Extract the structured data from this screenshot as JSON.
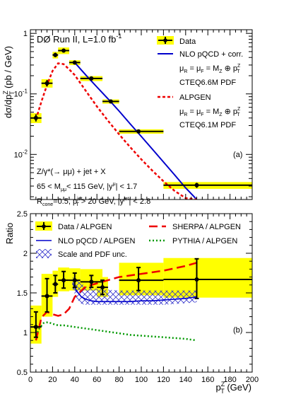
{
  "chart_data": [
    {
      "type": "line",
      "panel_label": "(a)",
      "ylabel": "dσ/dp",
      "ylabel_sup": "Z",
      "ylabel_sub": "T",
      "ylabel_unit": " (pb / GeV)",
      "title": "DØ Run II, L=1.0 fb",
      "title_sup": "-1",
      "yscale": "log",
      "ylim": [
        0.0018,
        1.15
      ],
      "xlim": [
        0,
        200
      ],
      "yticks": [
        {
          "value": 1,
          "base": "1",
          "exp": ""
        },
        {
          "value": 0.1,
          "base": "10",
          "exp": "-1"
        },
        {
          "value": 0.01,
          "base": "10",
          "exp": "-2"
        }
      ],
      "annotations": [
        "Z/γ*(→ μμ) + jet + X",
        "65 < M",
        "μμ",
        "< 115 GeV,  |y",
        "μ",
        "| < 1.7",
        "R",
        "cone",
        "=0.5,  p",
        "jet",
        "T",
        " > 20 GeV,  |y",
        "jet",
        "| < 2.8"
      ],
      "legend": [
        {
          "label": "Data",
          "style": "data"
        },
        {
          "label": "NLO pQCD + corr.",
          "style": "nlo"
        },
        {
          "label": "μ",
          "sub": "R",
          "rest": " = μ",
          "sub2": "F",
          "rest2": " = M",
          "sub3": "Z",
          "rest3": " ⊕ p",
          "sup4": "Z",
          "sub4": "T",
          "style": "text"
        },
        {
          "label": "CTEQ6.6M PDF",
          "style": "text"
        },
        {
          "label": "ALPGEN",
          "style": "alpgen"
        },
        {
          "label": "μ",
          "sub": "R",
          "rest": " = μ",
          "sub2": "F",
          "rest2": " = M",
          "sub3": "Z",
          "rest3": " ⊕ p",
          "sup4": "Z",
          "sub4": "T",
          "style": "text"
        },
        {
          "label": "CTEQ6.1M PDF",
          "style": "text"
        }
      ],
      "series": [
        {
          "name": "Data",
          "color": "#000000",
          "band_color": "#ffff00",
          "points": [
            {
              "x": 5,
              "xlo": 0,
              "xhi": 10,
              "y": 0.04,
              "ylo": 0.035,
              "yhi": 0.046,
              "blo": 0.033,
              "bhi": 0.048
            },
            {
              "x": 15,
              "xlo": 10,
              "xhi": 20,
              "y": 0.15,
              "ylo": 0.133,
              "yhi": 0.17,
              "blo": 0.127,
              "bhi": 0.175
            },
            {
              "x": 22.5,
              "xlo": 20,
              "xhi": 25,
              "y": 0.44,
              "ylo": 0.405,
              "yhi": 0.48,
              "blo": 0.385,
              "bhi": 0.495
            },
            {
              "x": 30,
              "xlo": 25,
              "xhi": 35,
              "y": 0.52,
              "ylo": 0.485,
              "yhi": 0.56,
              "blo": 0.455,
              "bhi": 0.585
            },
            {
              "x": 40,
              "xlo": 35,
              "xhi": 45,
              "y": 0.33,
              "ylo": 0.31,
              "yhi": 0.35,
              "blo": 0.3,
              "bhi": 0.36
            },
            {
              "x": 55,
              "xlo": 45,
              "xhi": 65,
              "y": 0.18,
              "ylo": 0.171,
              "yhi": 0.189,
              "blo": 0.163,
              "bhi": 0.197
            },
            {
              "x": 72.5,
              "xlo": 65,
              "xhi": 80,
              "y": 0.075,
              "ylo": 0.071,
              "yhi": 0.079,
              "blo": 0.069,
              "bhi": 0.081
            },
            {
              "x": 97.5,
              "xlo": 80,
              "xhi": 120,
              "y": 0.024,
              "ylo": 0.0226,
              "yhi": 0.0254,
              "blo": 0.022,
              "bhi": 0.026
            },
            {
              "x": 150,
              "xlo": 120,
              "xhi": 200,
              "y": 0.0031,
              "ylo": 0.0028,
              "yhi": 0.0034,
              "blo": 0.0027,
              "bhi": 0.0035
            }
          ]
        },
        {
          "name": "NLO pQCD + corr.",
          "color": "#0000cc",
          "dash": "none",
          "x": [
            40,
            50,
            60,
            70,
            80,
            90,
            100,
            110,
            120,
            130,
            140,
            150
          ],
          "y": [
            0.33,
            0.205,
            0.13,
            0.083,
            0.052,
            0.032,
            0.0198,
            0.0122,
            0.0075,
            0.0046,
            0.0028,
            0.0018
          ]
        },
        {
          "name": "ALPGEN",
          "color": "#ee0000",
          "dash": "4,3",
          "x": [
            5,
            10,
            15,
            20,
            25,
            30,
            35,
            40,
            50,
            60,
            70,
            80,
            90,
            100,
            110,
            120,
            130,
            140,
            150
          ],
          "y": [
            0.038,
            0.075,
            0.14,
            0.24,
            0.32,
            0.31,
            0.255,
            0.205,
            0.112,
            0.062,
            0.036,
            0.0215,
            0.0132,
            0.0083,
            0.0054,
            0.0036,
            0.0025,
            0.0019,
            0.0018
          ]
        }
      ]
    },
    {
      "type": "line",
      "panel_label": "(b)",
      "ylabel": "Ratio",
      "xlabel": "p",
      "xlabel_sup": "Z",
      "xlabel_sub": "T",
      "xlabel_unit": " (GeV)",
      "xlim": [
        0,
        200
      ],
      "ylim": [
        0.5,
        2.5
      ],
      "xticks": [
        "0",
        "20",
        "40",
        "60",
        "80",
        "100",
        "120",
        "140",
        "160",
        "180",
        "200"
      ],
      "yticks": [
        "0.5",
        "1",
        "1.5",
        "2",
        "2.5"
      ],
      "legend": [
        {
          "label": "Data / ALPGEN",
          "style": "data"
        },
        {
          "label": "SHERPA / ALPGEN",
          "style": "sherpa"
        },
        {
          "label": "NLO pQCD / ALPGEN",
          "style": "nlo"
        },
        {
          "label": "PYTHIA / ALPGEN",
          "style": "pythia"
        },
        {
          "label": "Scale and PDF unc.",
          "style": "hatch"
        }
      ],
      "series": [
        {
          "name": "Data / ALPGEN",
          "color": "#000000",
          "band_color": "#ffff00",
          "points": [
            {
              "x": 5,
              "xlo": 0,
              "xhi": 10,
              "y": 1.07,
              "ylo": 0.94,
              "yhi": 1.26,
              "blo": 0.86,
              "bhi": 1.34
            },
            {
              "x": 15,
              "xlo": 10,
              "xhi": 20,
              "y": 1.46,
              "ylo": 1.26,
              "yhi": 1.68,
              "blo": 1.2,
              "bhi": 1.74
            },
            {
              "x": 22.5,
              "xlo": 20,
              "xhi": 25,
              "y": 1.61,
              "ylo": 1.5,
              "yhi": 1.72,
              "blo": 1.45,
              "bhi": 1.78
            },
            {
              "x": 30,
              "xlo": 25,
              "xhi": 35,
              "y": 1.66,
              "ylo": 1.56,
              "yhi": 1.77,
              "blo": 1.52,
              "bhi": 1.82
            },
            {
              "x": 40,
              "xlo": 35,
              "xhi": 45,
              "y": 1.66,
              "ylo": 1.57,
              "yhi": 1.75,
              "blo": 1.53,
              "bhi": 1.81
            },
            {
              "x": 55,
              "xlo": 45,
              "xhi": 65,
              "y": 1.64,
              "ylo": 1.57,
              "yhi": 1.72,
              "blo": 1.53,
              "bhi": 1.8
            },
            {
              "x": 65,
              "xlo": 60,
              "xhi": 70,
              "y": 1.57,
              "ylo": 1.48,
              "yhi": 1.66,
              "blo": 1.45,
              "bhi": 1.7
            },
            {
              "x": 97.5,
              "xlo": 80,
              "xhi": 120,
              "y": 1.66,
              "ylo": 1.53,
              "yhi": 1.82,
              "blo": 1.47,
              "bhi": 1.88
            },
            {
              "x": 150,
              "xlo": 120,
              "xhi": 200,
              "y": 1.67,
              "ylo": 1.43,
              "yhi": 1.93,
              "blo": 1.44,
              "bhi": 1.94
            }
          ]
        },
        {
          "name": "SHERPA / ALPGEN",
          "color": "#ee0000",
          "dash": "12,6",
          "x": [
            5,
            10,
            15,
            20,
            25,
            30,
            35,
            40,
            50,
            60,
            70,
            80,
            90,
            100,
            110,
            120,
            130,
            140,
            150
          ],
          "y": [
            0.9,
            1.19,
            1.26,
            1.23,
            1.21,
            1.23,
            1.3,
            1.45,
            1.58,
            1.62,
            1.66,
            1.7,
            1.72,
            1.74,
            1.76,
            1.78,
            1.81,
            1.84,
            1.88
          ]
        },
        {
          "name": "NLO pQCD / ALPGEN",
          "color": "#0000cc",
          "dash": "none",
          "x": [
            38,
            42,
            46,
            50,
            55,
            60,
            70,
            80,
            90,
            100,
            110,
            120,
            130,
            140,
            150
          ],
          "y": [
            1.62,
            1.52,
            1.45,
            1.42,
            1.4,
            1.39,
            1.39,
            1.39,
            1.39,
            1.4,
            1.4,
            1.41,
            1.42,
            1.43,
            1.45
          ]
        },
        {
          "name": "PYTHIA / ALPGEN",
          "color": "#009900",
          "dash": "2,3",
          "x": [
            5,
            8,
            12,
            16,
            20,
            25,
            30,
            35,
            40,
            50,
            60,
            70,
            80,
            90,
            100,
            110,
            120,
            130,
            140,
            150
          ],
          "y": [
            0.96,
            1.05,
            1.12,
            1.13,
            1.11,
            1.09,
            1.09,
            1.08,
            1.07,
            1.05,
            1.03,
            1.01,
            0.99,
            0.97,
            0.96,
            0.95,
            0.94,
            0.93,
            0.92,
            0.9
          ]
        }
      ],
      "uncertainty_band": {
        "name": "Scale and PDF unc.",
        "color": "#3333cc",
        "x": [
          38,
          42,
          46,
          50,
          55,
          60,
          70,
          80,
          90,
          100,
          110,
          120,
          130,
          140,
          150
        ],
        "ylo": [
          1.55,
          1.42,
          1.36,
          1.35,
          1.35,
          1.35,
          1.35,
          1.35,
          1.35,
          1.35,
          1.35,
          1.35,
          1.36,
          1.37,
          1.38
        ],
        "yhi": [
          1.7,
          1.66,
          1.62,
          1.58,
          1.56,
          1.55,
          1.54,
          1.53,
          1.53,
          1.53,
          1.53,
          1.53,
          1.53,
          1.53,
          1.53
        ]
      }
    }
  ]
}
